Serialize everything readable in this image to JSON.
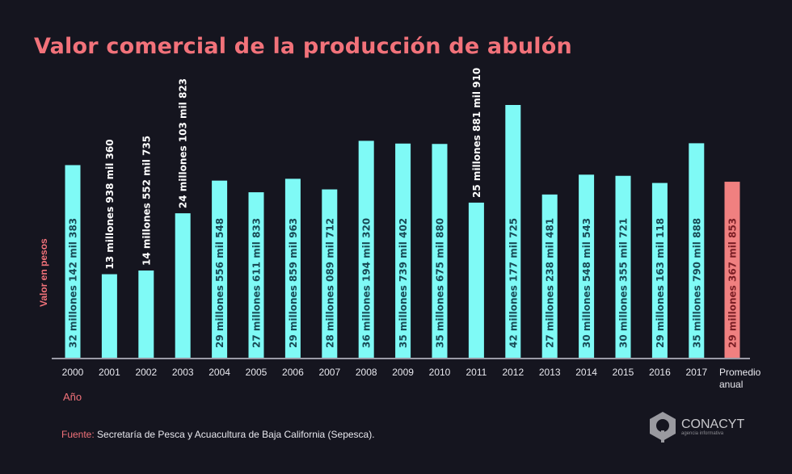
{
  "title": "Valor comercial de la producción de abulón",
  "source": {
    "label": "Fuente:",
    "text": "Secretaría de Pesca y Acuacultura de Baja California (Sepesca)."
  },
  "logo": {
    "brand": "CONACYT",
    "subtitle": "agencia informativa"
  },
  "colors": {
    "background": "#15151f",
    "bar": "#7ffaf6",
    "average_bar": "#f08080",
    "accent": "#f2727a",
    "bar_label": "#184a55",
    "average_label": "#7a1e24"
  },
  "chart_data": {
    "type": "bar",
    "title": "Valor comercial de la producción de abulón",
    "xlabel": "Año",
    "ylabel": "Valor en pesos",
    "grid": false,
    "categories": [
      "2000",
      "2001",
      "2002",
      "2003",
      "2004",
      "2005",
      "2006",
      "2007",
      "2008",
      "2009",
      "2010",
      "2011",
      "2012",
      "2013",
      "2014",
      "2015",
      "2016",
      "2017",
      "Promedio anual"
    ],
    "values": [
      32142383,
      13938360,
      14552735,
      24103823,
      29556548,
      27611833,
      29859963,
      28089712,
      36194320,
      35739402,
      35675880,
      25881910,
      42177725,
      27238481,
      30548543,
      30355721,
      29163118,
      35790888,
      29367853
    ],
    "data_labels": [
      "32 millones 142 mil 383",
      "13 millones 938 mil 360",
      "14 millones 552 mil 735",
      "24 millones 103 mil 823",
      "29 millones 556 mil 548",
      "27 millones 611 mil 833",
      "29 millones 859 mil 963",
      "28 millones 089 mil 712",
      "36 millones 194 mil 320",
      "35 millones 739 mil 402",
      "35 millones 675 mil 880",
      "25 millones 881 mil 910",
      "42 millones 177 mil 725",
      "27 millones 238 mil 481",
      "30 millones 548 mil 543",
      "30 millones 355 mil 721",
      "29 millones 163 mil 118",
      "35 millones 790 mil 888",
      "29 millones 367 mil 853"
    ],
    "highlight_category": "Promedio anual",
    "ylim": [
      0,
      42177725
    ]
  }
}
